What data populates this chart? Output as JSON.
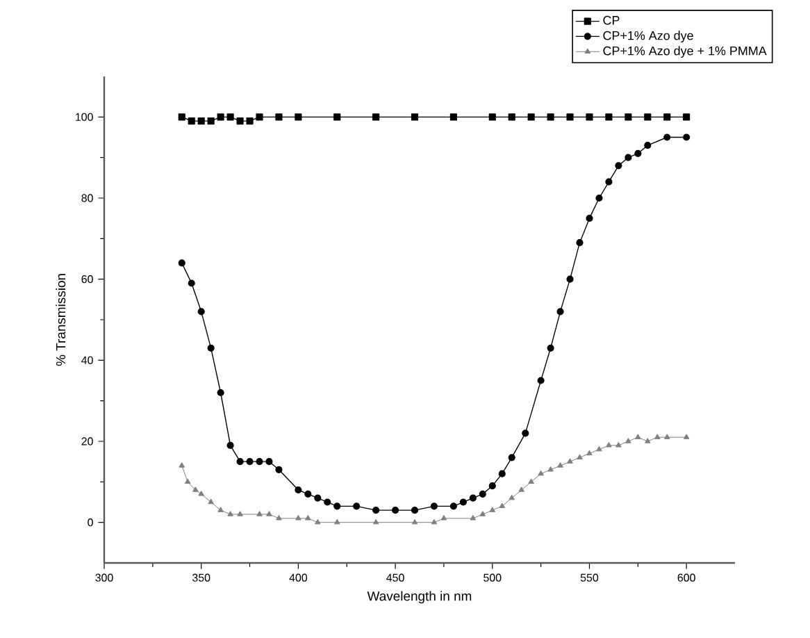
{
  "chart_data": {
    "type": "line",
    "xlabel": "Wavelength in nm",
    "ylabel": "% Transmission",
    "xlim": [
      300,
      625
    ],
    "ylim": [
      -10,
      110
    ],
    "xticks": [
      300,
      350,
      400,
      450,
      500,
      550,
      600
    ],
    "yticks": [
      0,
      20,
      40,
      60,
      80,
      100
    ],
    "legend": "top right",
    "line_style": "solid",
    "grid": false,
    "series": [
      {
        "name": "CP",
        "color": "#000000",
        "marker": "square",
        "x": [
          340,
          345,
          350,
          355,
          360,
          365,
          370,
          375,
          380,
          390,
          400,
          420,
          440,
          460,
          480,
          500,
          510,
          520,
          530,
          540,
          550,
          560,
          570,
          580,
          590,
          600
        ],
        "values": [
          100,
          99,
          99,
          99,
          100,
          100,
          99,
          99,
          100,
          100,
          100,
          100,
          100,
          100,
          100,
          100,
          100,
          100,
          100,
          100,
          100,
          100,
          100,
          100,
          100,
          100
        ]
      },
      {
        "name": "CP+1% Azo dye",
        "color": "#000000",
        "marker": "circle",
        "x": [
          340,
          345,
          350,
          355,
          360,
          365,
          370,
          375,
          380,
          385,
          390,
          400,
          405,
          410,
          415,
          420,
          430,
          440,
          450,
          460,
          470,
          480,
          485,
          490,
          495,
          500,
          505,
          510,
          517,
          525,
          530,
          535,
          540,
          545,
          550,
          555,
          560,
          565,
          570,
          575,
          580,
          590,
          600
        ],
        "values": [
          64,
          59,
          52,
          43,
          32,
          19,
          15,
          15,
          15,
          15,
          13,
          8,
          7,
          6,
          5,
          4,
          4,
          3,
          3,
          3,
          4,
          4,
          5,
          6,
          7,
          9,
          12,
          16,
          22,
          35,
          43,
          52,
          60,
          69,
          75,
          80,
          84,
          88,
          90,
          91,
          93,
          95,
          95
        ]
      },
      {
        "name": "CP+1% Azo dye + 1% PMMA",
        "color": "#808080",
        "marker": "triangle",
        "x": [
          340,
          343,
          347,
          350,
          355,
          360,
          365,
          370,
          380,
          385,
          390,
          400,
          405,
          410,
          420,
          440,
          460,
          470,
          475,
          490,
          495,
          500,
          505,
          510,
          515,
          520,
          525,
          530,
          535,
          540,
          545,
          550,
          555,
          560,
          565,
          570,
          575,
          580,
          585,
          590,
          600
        ],
        "values": [
          14,
          10,
          8,
          7,
          5,
          3,
          2,
          2,
          2,
          2,
          1,
          1,
          1,
          0,
          0,
          0,
          0,
          0,
          1,
          1,
          2,
          3,
          4,
          6,
          8,
          10,
          12,
          13,
          14,
          15,
          16,
          17,
          18,
          19,
          19,
          20,
          21,
          20,
          21,
          21,
          21
        ]
      }
    ]
  }
}
